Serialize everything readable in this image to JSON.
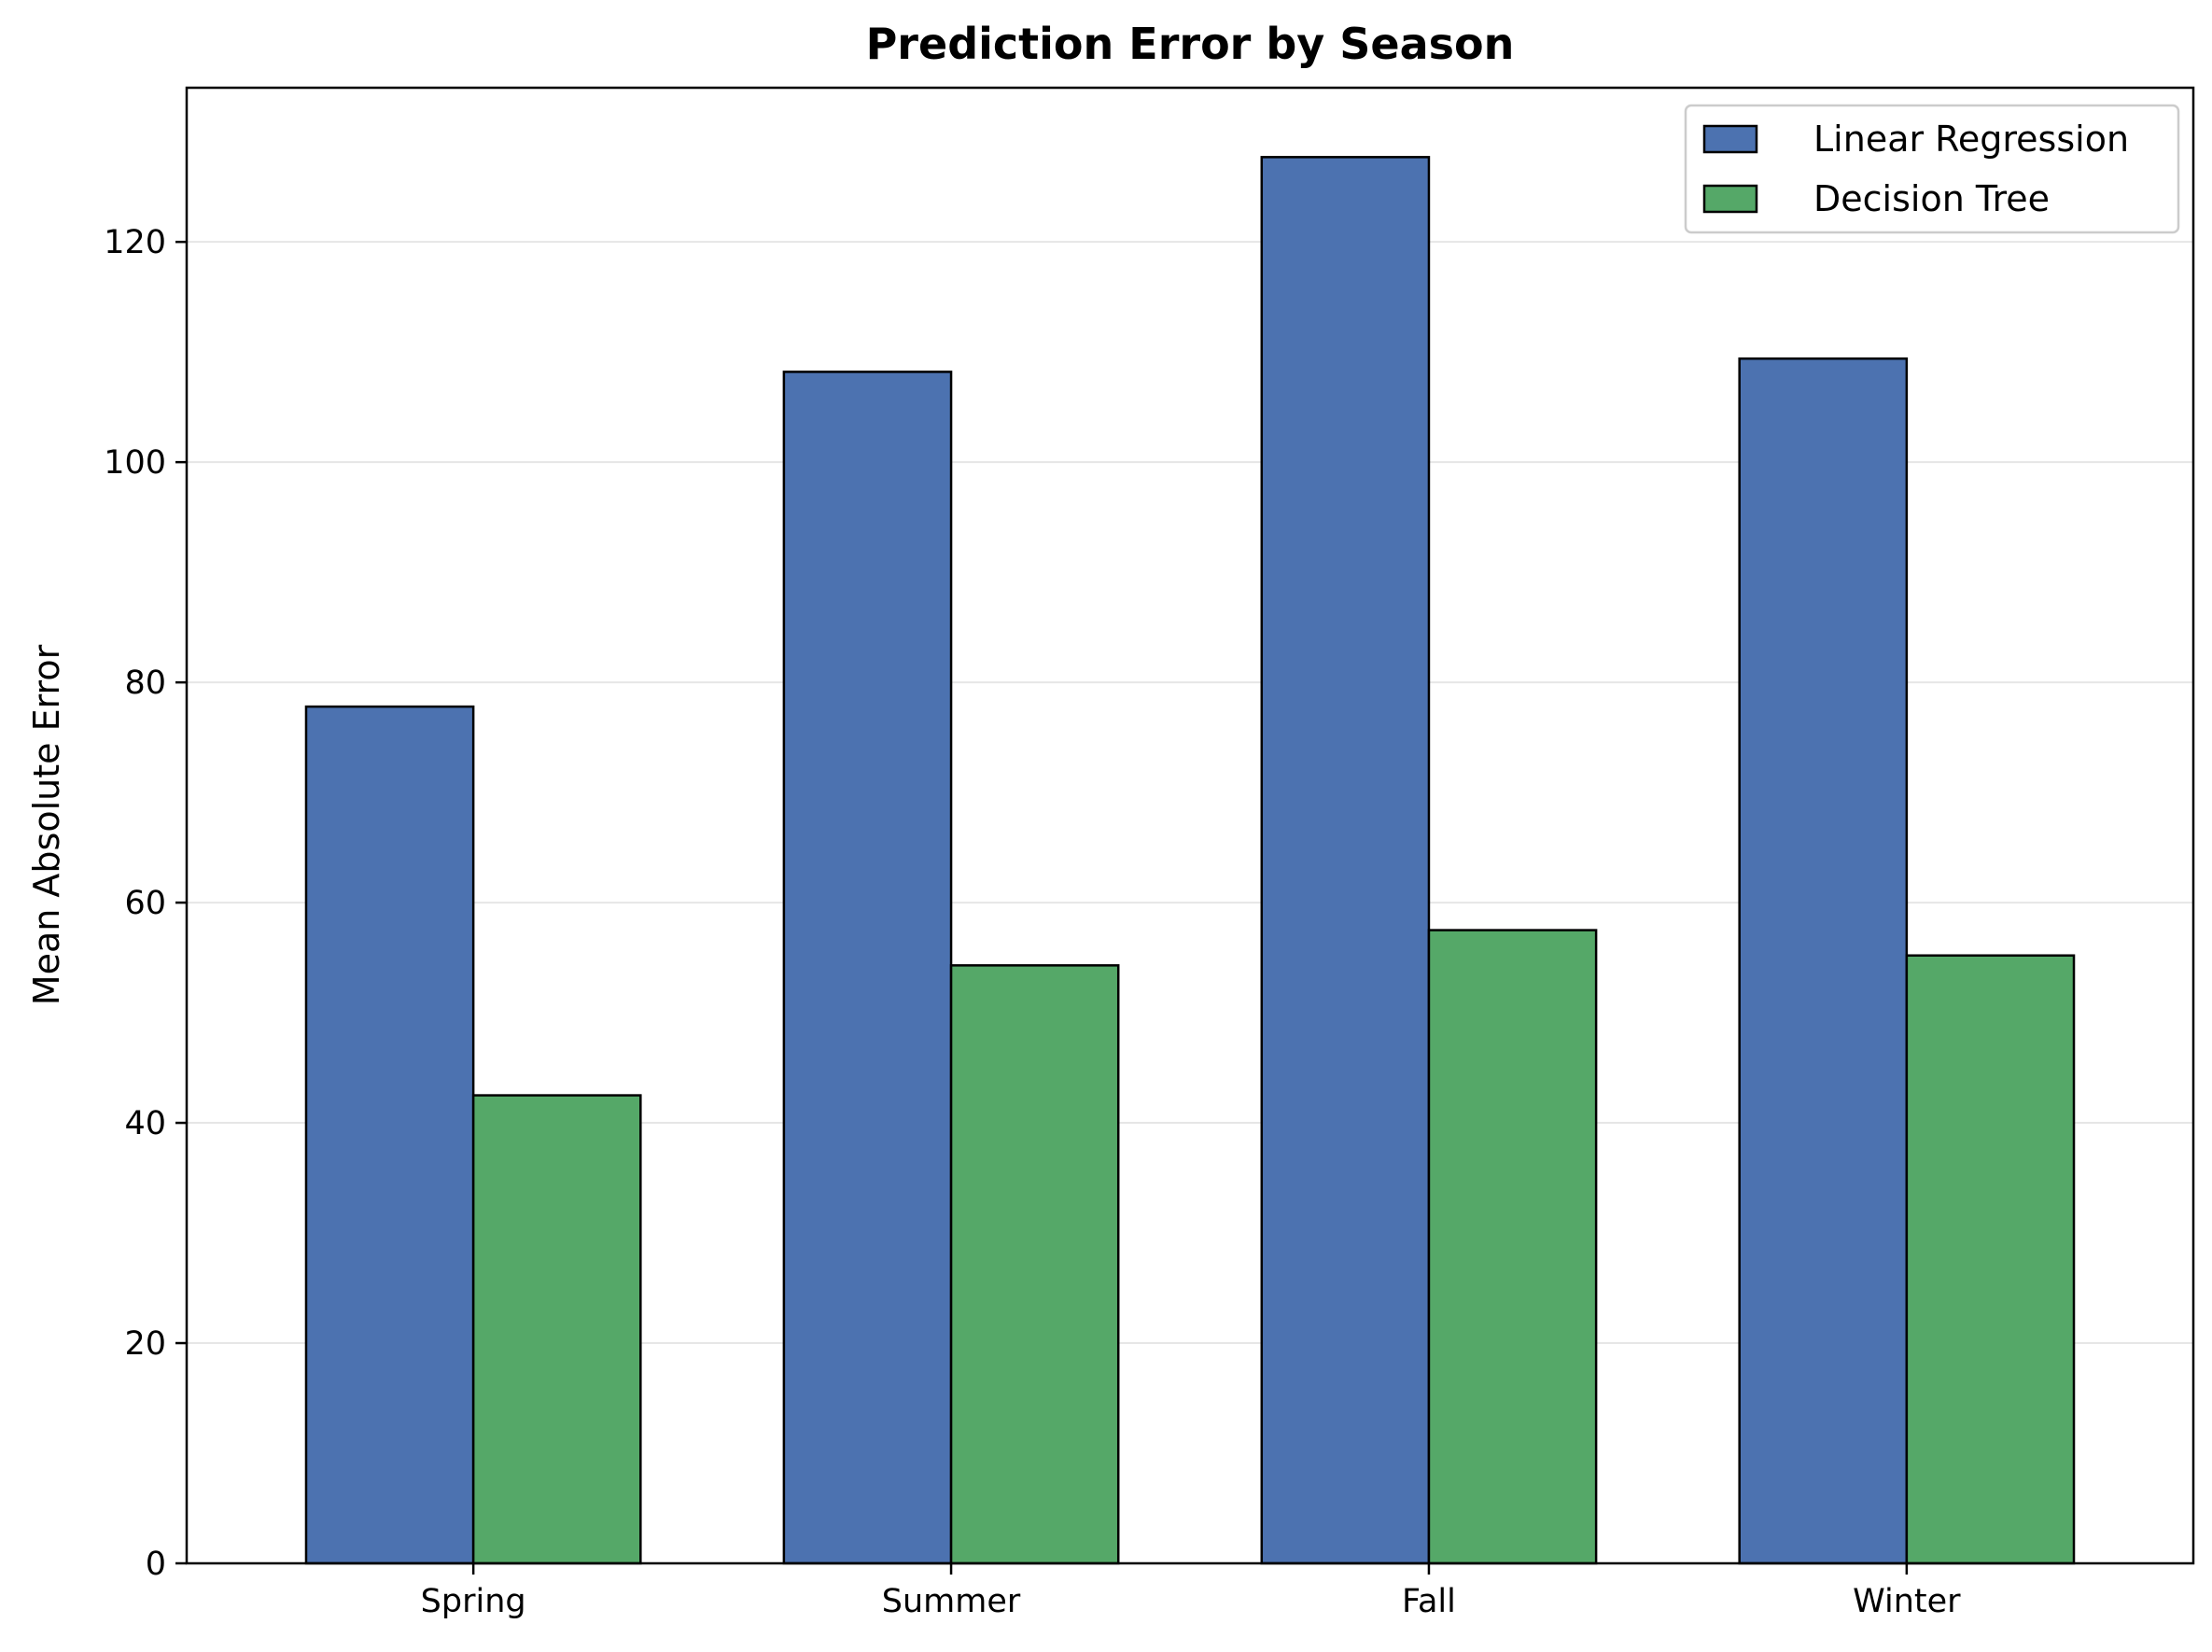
{
  "chart_data": {
    "type": "bar",
    "title": "Prediction Error by Season",
    "xlabel": "",
    "ylabel": "Mean Absolute Error",
    "categories": [
      "Spring",
      "Summer",
      "Fall",
      "Winter"
    ],
    "series": [
      {
        "name": "Linear Regression",
        "values": [
          77.8,
          108.2,
          127.7,
          109.4
        ],
        "color": "#4c72b0"
      },
      {
        "name": "Decision Tree",
        "values": [
          42.5,
          54.3,
          57.5,
          55.2
        ],
        "color": "#55a868"
      }
    ],
    "ylim": [
      0,
      134
    ],
    "yticks": [
      0,
      20,
      40,
      60,
      80,
      100,
      120
    ],
    "grid": "horizontal",
    "legend_position": "top-right",
    "colors": {
      "edge": "#000000",
      "grid": "#e6e6e6"
    }
  }
}
